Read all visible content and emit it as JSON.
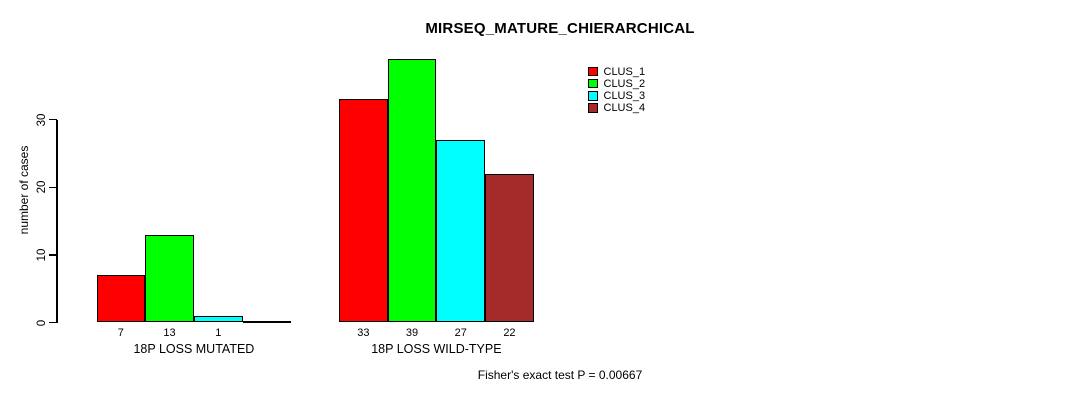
{
  "chart_data": {
    "type": "bar",
    "title": "MIRSEQ_MATURE_CHIERARCHICAL",
    "xlabel": "",
    "ylabel": "number of cases",
    "categories": [
      "18P LOSS MUTATED",
      "18P LOSS WILD-TYPE"
    ],
    "series": [
      {
        "name": "CLUS_1",
        "color": "#FF0000",
        "values": [
          7,
          33
        ]
      },
      {
        "name": "CLUS_2",
        "color": "#00FF00",
        "values": [
          13,
          39
        ]
      },
      {
        "name": "CLUS_3",
        "color": "#00FFFF",
        "values": [
          1,
          27
        ]
      },
      {
        "name": "CLUS_4",
        "color": "#A52A2A",
        "values": [
          0,
          22
        ]
      }
    ],
    "y_ticks": [
      0,
      10,
      20,
      30
    ],
    "ylim": [
      0,
      39
    ],
    "grid": false,
    "legend_position": "top-right-inside",
    "bar_border_color": "#000000",
    "background_color": "#FFFFFF",
    "show_value_labels": true,
    "hide_zero_value_labels": true,
    "annotation": "Fisher's exact test P = 0.00667"
  }
}
